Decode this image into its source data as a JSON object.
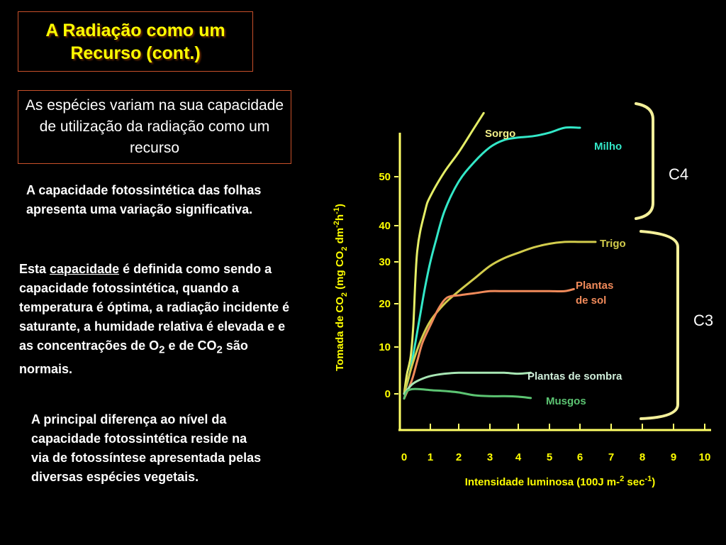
{
  "slide": {
    "title_line1": "A Radiação como um",
    "title_line2": "Recurso (cont.)",
    "subtitle": "As espécies variam na sua capacidade de utilização da radiação como um recurso",
    "para1": "A capacidade fotossintética das folhas apresenta uma variação significativa.",
    "para2": {
      "pre": "Esta ",
      "link": "capacidade",
      "mid": " é definida como sendo a capacidade fotossintética, quando a temperatura é óptima, a radiação incidente é saturante, a humidade relativa é elevada e e as concentrações de O",
      "sub1": "2",
      "mid2": " e de CO",
      "sub2": "2",
      "post": " são normais."
    },
    "para3": "A principal diferença ao nível da capacidade fotossintética reside na via de fotossíntese apresentada pelas diversas espécies vegetais."
  },
  "chart_data": {
    "type": "line",
    "xlabel": {
      "pre": "Intensidade luminosa (100J m-",
      "sup1": "2",
      "mid": " sec",
      "sup2": "-1",
      "post": ")"
    },
    "ylabel": {
      "p1": "Tomada de CO",
      "sub1": "2",
      "p2": " (mg CO",
      "sub2": "2",
      "p3": " dm",
      "sup1": "-2",
      "p4": "h",
      "sup2": "-1",
      "p5": ")"
    },
    "xlim": [
      0,
      10
    ],
    "ylim": [
      -8,
      57
    ],
    "x_ticks": [
      0,
      1,
      2,
      3,
      4,
      5,
      6,
      7,
      8,
      9,
      10
    ],
    "y_ticks": [
      0,
      10,
      20,
      30,
      40,
      50
    ],
    "series": [
      {
        "name": "Sorgo",
        "color": "#e5ee66",
        "x": [
          0,
          0.1,
          0.25,
          0.35,
          0.5,
          0.8,
          1.0,
          1.5,
          2.0,
          2.5,
          2.8
        ],
        "y": [
          0,
          4,
          8,
          15,
          33,
          43,
          46,
          51,
          55,
          60,
          63
        ]
      },
      {
        "name": "Milho",
        "color": "#33e8c8",
        "x": [
          0,
          0.2,
          0.4,
          0.6,
          0.8,
          1.0,
          1.2,
          1.5,
          2.0,
          2.5,
          3.0,
          3.5,
          4.0,
          4.5,
          5.0,
          5.5,
          6.0
        ],
        "y": [
          0,
          4,
          10,
          17,
          24,
          30,
          36,
          43,
          49,
          53,
          56,
          57.5,
          58,
          58.3,
          59,
          60,
          60
        ]
      },
      {
        "name": "Trigo",
        "color": "#d2cc4c",
        "x": [
          0,
          0.3,
          0.6,
          1.0,
          1.5,
          2.0,
          2.5,
          3.0,
          3.5,
          4.0,
          4.5,
          5.0,
          5.5,
          6.0,
          6.5
        ],
        "y": [
          0,
          6,
          11,
          16,
          20,
          23,
          26,
          29,
          31,
          32.5,
          34,
          35,
          35.5,
          35.5,
          35.5
        ]
      },
      {
        "name": "Plantas de sol",
        "color": "#f08a5a",
        "x": [
          0,
          0.3,
          0.5,
          0.7,
          1.0,
          1.3,
          1.6,
          2.0,
          2.5,
          3.0,
          3.5,
          4.0,
          4.5,
          5.0,
          5.5,
          5.8
        ],
        "y": [
          -1,
          3,
          7,
          11,
          15,
          19,
          21.5,
          22,
          22.5,
          23,
          23,
          23,
          23,
          23,
          23,
          23.5
        ]
      },
      {
        "name": "Plantas de sombra",
        "color": "#a8e6b4",
        "x": [
          0,
          0.3,
          0.6,
          1.0,
          1.5,
          2.0,
          2.5,
          3.0,
          3.5,
          4.0,
          4.4
        ],
        "y": [
          0,
          2,
          3,
          3.8,
          4.3,
          4.5,
          4.5,
          4.5,
          4.5,
          4.3,
          4.5
        ]
      },
      {
        "name": "Musgos",
        "color": "#5cc472",
        "x": [
          0,
          0.1,
          0.3,
          0.6,
          1.0,
          1.5,
          2.0,
          2.5,
          3.0,
          3.5,
          4.0,
          4.4
        ],
        "y": [
          -1,
          0.5,
          1,
          1,
          0.8,
          0.6,
          0.3,
          -0.3,
          -0.5,
          -0.5,
          -0.6,
          -0.9
        ]
      }
    ],
    "legend": [
      {
        "label1": "Sorgo",
        "label2": "",
        "color": "#f2ef88"
      },
      {
        "label1": "Milho",
        "label2": "",
        "color": "#33e8c8"
      },
      {
        "label1": "Trigo",
        "label2": "",
        "color": "#d2cc4c"
      },
      {
        "label1": "Plantas",
        "label2": "de sol",
        "color": "#f08a5a"
      },
      {
        "label1": "Plantas de sombra",
        "label2": "",
        "color": "#cfeeda"
      },
      {
        "label1": "Musgos",
        "label2": "",
        "color": "#5cc472"
      }
    ],
    "groups": [
      {
        "label": "C4",
        "color": "#f4f09a"
      },
      {
        "label": "C3",
        "color": "#f4f09a"
      }
    ],
    "axis_color": "#ffff66",
    "grid": false
  }
}
